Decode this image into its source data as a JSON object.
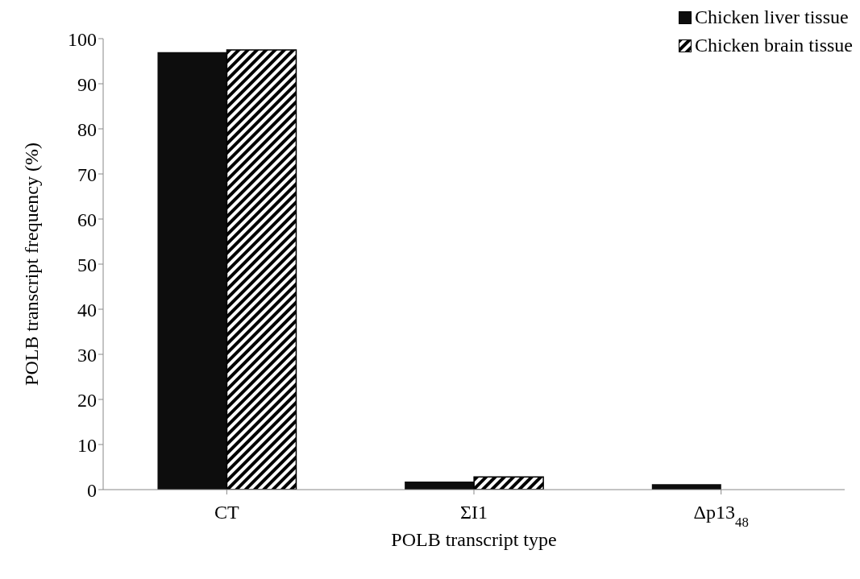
{
  "chart_data": {
    "type": "bar",
    "xlabel": "POLB transcript type",
    "ylabel": "POLB transcript frequency (%)",
    "categories": [
      "CT",
      "ΣI1",
      "Δp13$_{48}$"
    ],
    "series": [
      {
        "name": "Chicken liver tissue",
        "color": "#0d0d0d",
        "values": [
          97.0,
          1.8,
          1.2
        ]
      },
      {
        "name": "Chicken brain tissue",
        "color": "#000000",
        "values": [
          97.5,
          2.8,
          0
        ]
      }
    ],
    "ylim": [
      0,
      100
    ],
    "yticks": [
      0,
      10,
      20,
      30,
      40,
      50,
      60,
      70,
      80,
      90,
      100
    ],
    "grid": false,
    "legend": "top right"
  }
}
